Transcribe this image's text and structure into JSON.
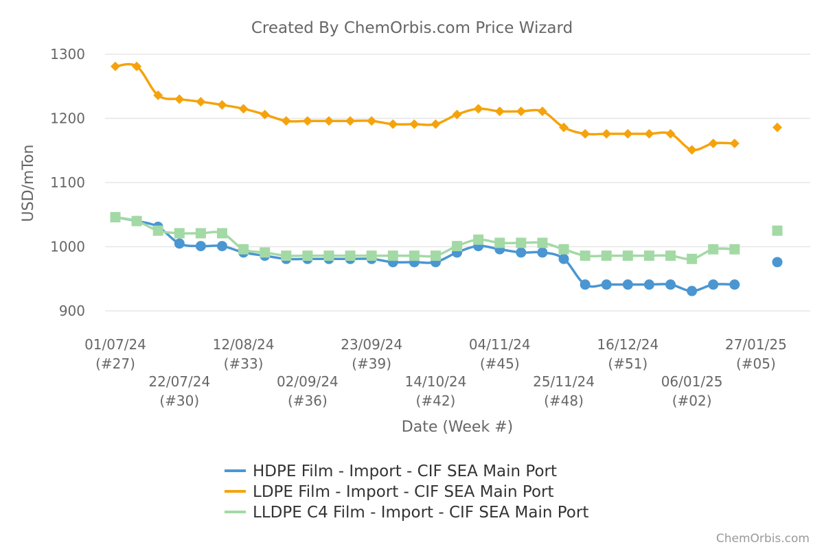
{
  "chart_data": {
    "type": "line",
    "title": "Created By ChemOrbis.com Price Wizard",
    "xlabel": "Date (Week #)",
    "ylabel": "USD/mTon",
    "ylim": [
      880,
      1310
    ],
    "yticks": [
      900,
      1000,
      1100,
      1200,
      1300
    ],
    "grid": true,
    "legend_placement": "bottom-center",
    "credit": "ChemOrbis.com",
    "x_tick_labels": [
      {
        "date": "01/07/24",
        "week": "(#27)",
        "index": 0,
        "row": 0
      },
      {
        "date": "22/07/24",
        "week": "(#30)",
        "index": 3,
        "row": 1
      },
      {
        "date": "12/08/24",
        "week": "(#33)",
        "index": 6,
        "row": 0
      },
      {
        "date": "02/09/24",
        "week": "(#36)",
        "index": 9,
        "row": 1
      },
      {
        "date": "23/09/24",
        "week": "(#39)",
        "index": 12,
        "row": 0
      },
      {
        "date": "14/10/24",
        "week": "(#42)",
        "index": 15,
        "row": 1
      },
      {
        "date": "04/11/24",
        "week": "(#45)",
        "index": 18,
        "row": 0
      },
      {
        "date": "25/11/24",
        "week": "(#48)",
        "index": 21,
        "row": 1
      },
      {
        "date": "16/12/24",
        "week": "(#51)",
        "index": 24,
        "row": 0
      },
      {
        "date": "06/01/25",
        "week": "(#02)",
        "index": 27,
        "row": 1
      },
      {
        "date": "27/01/25",
        "week": "(#05)",
        "index": 30,
        "row": 0
      }
    ],
    "x_count": 32,
    "series": [
      {
        "name": "HDPE Film - Import - CIF SEA Main Port",
        "color": "#4a96d2",
        "marker": "circle",
        "values": [
          1046,
          1040,
          1031,
          1005,
          1001,
          1001,
          991,
          986,
          981,
          981,
          981,
          981,
          981,
          976,
          976,
          976,
          991,
          1001,
          996,
          991,
          991,
          981,
          941,
          941,
          941,
          941,
          941,
          931,
          941,
          941,
          null,
          976
        ]
      },
      {
        "name": "LDPE Film - Import - CIF SEA Main Port",
        "color": "#f5a30c",
        "marker": "diamond",
        "values": [
          1281,
          1281,
          1236,
          1230,
          1226,
          1221,
          1215,
          1206,
          1196,
          1196,
          1196,
          1196,
          1196,
          1191,
          1191,
          1191,
          1206,
          1215,
          1211,
          1211,
          1211,
          1186,
          1176,
          1176,
          1176,
          1176,
          1176,
          1151,
          1161,
          1161,
          null,
          1186
        ]
      },
      {
        "name": "LLDPE C4 Film - Import - CIF SEA Main Port",
        "color": "#a3d9a5",
        "marker": "square",
        "values": [
          1046,
          1040,
          1025,
          1021,
          1021,
          1021,
          996,
          991,
          986,
          986,
          986,
          986,
          986,
          986,
          986,
          986,
          1001,
          1011,
          1006,
          1006,
          1006,
          996,
          986,
          986,
          986,
          986,
          986,
          981,
          996,
          996,
          null,
          1025
        ]
      }
    ]
  }
}
